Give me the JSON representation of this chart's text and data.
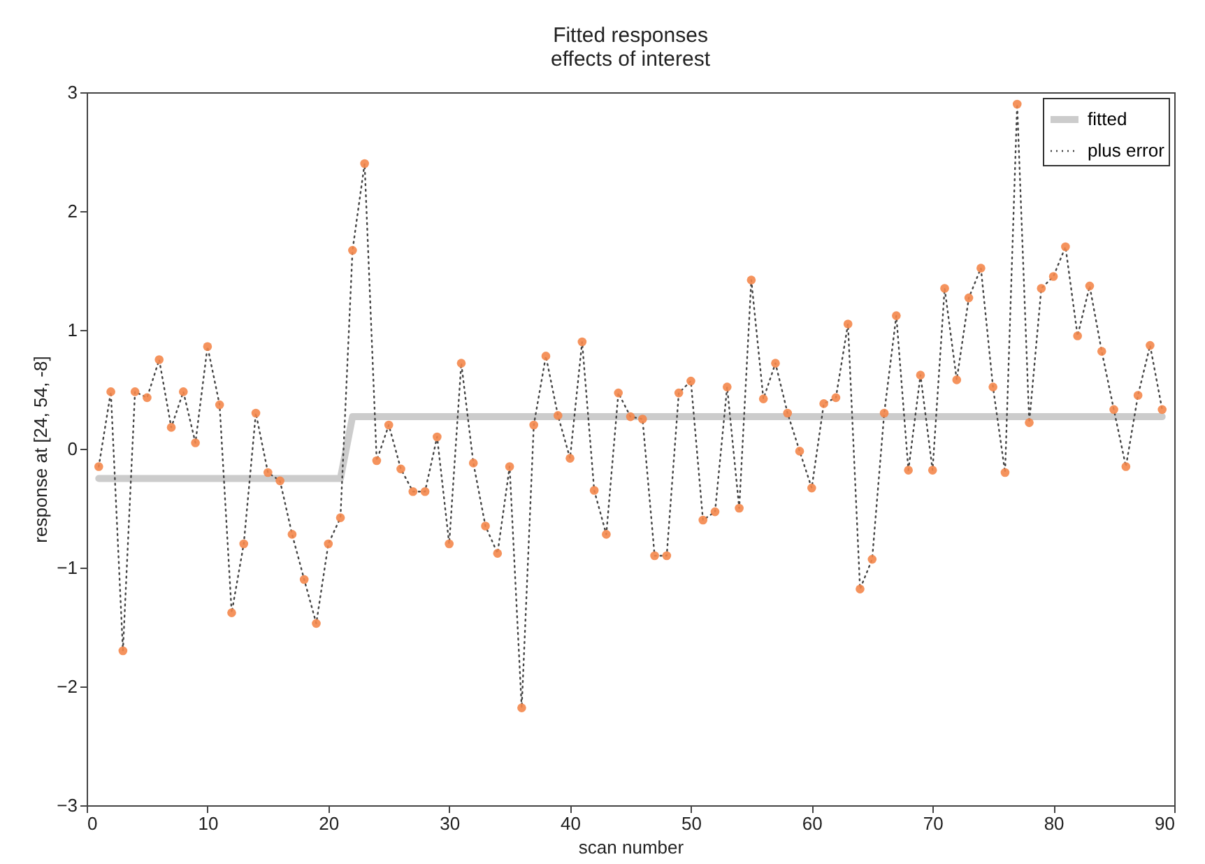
{
  "chart_data": {
    "type": "line",
    "title": "Fitted responses",
    "subtitle": "effects of interest",
    "xlabel": "scan number",
    "ylabel": "response at [24, 54, -8]",
    "x": [
      1,
      2,
      3,
      4,
      5,
      6,
      7,
      8,
      9,
      10,
      11,
      12,
      13,
      14,
      15,
      16,
      17,
      18,
      19,
      20,
      21,
      22,
      23,
      24,
      25,
      26,
      27,
      28,
      29,
      30,
      31,
      32,
      33,
      34,
      35,
      36,
      37,
      38,
      39,
      40,
      41,
      42,
      43,
      44,
      45,
      46,
      47,
      48,
      49,
      50,
      51,
      52,
      53,
      54,
      55,
      56,
      57,
      58,
      59,
      60,
      61,
      62,
      63,
      64,
      65,
      66,
      67,
      68,
      69,
      70,
      71,
      72,
      73,
      74,
      75,
      76,
      77,
      78,
      79,
      80,
      81,
      82,
      83,
      84,
      85,
      86,
      87,
      88,
      89
    ],
    "series": [
      {
        "name": "fitted",
        "color": "#cccccc",
        "line_style": "solid",
        "values": [
          -0.25,
          -0.25,
          -0.25,
          -0.25,
          -0.25,
          -0.25,
          -0.25,
          -0.25,
          -0.25,
          -0.25,
          -0.25,
          -0.25,
          -0.25,
          -0.25,
          -0.25,
          -0.25,
          -0.25,
          -0.25,
          -0.25,
          -0.25,
          -0.25,
          0.27,
          0.27,
          0.27,
          0.27,
          0.27,
          0.27,
          0.27,
          0.27,
          0.27,
          0.27,
          0.27,
          0.27,
          0.27,
          0.27,
          0.27,
          0.27,
          0.27,
          0.27,
          0.27,
          0.27,
          0.27,
          0.27,
          0.27,
          0.27,
          0.27,
          0.27,
          0.27,
          0.27,
          0.27,
          0.27,
          0.27,
          0.27,
          0.27,
          0.27,
          0.27,
          0.27,
          0.27,
          0.27,
          0.27,
          0.27,
          0.27,
          0.27,
          0.27,
          0.27,
          0.27,
          0.27,
          0.27,
          0.27,
          0.27,
          0.27,
          0.27,
          0.27,
          0.27,
          0.27,
          0.27,
          0.27,
          0.27,
          0.27,
          0.27,
          0.27,
          0.27,
          0.27,
          0.27,
          0.27,
          0.27,
          0.27,
          0.27,
          0.27
        ]
      },
      {
        "name": "plus error",
        "color": "#444444",
        "line_style": "dotted",
        "values": [
          -0.15,
          0.48,
          -1.7,
          0.48,
          0.43,
          0.75,
          0.18,
          0.48,
          0.05,
          0.86,
          0.37,
          -1.38,
          -0.8,
          0.3,
          -0.2,
          -0.27,
          -0.72,
          -1.1,
          -1.47,
          -0.8,
          -0.58,
          1.67,
          2.4,
          -0.1,
          0.2,
          -0.17,
          -0.36,
          -0.36,
          0.1,
          -0.8,
          0.72,
          -0.12,
          -0.65,
          -0.88,
          -0.15,
          -2.18,
          0.2,
          0.78,
          0.28,
          -0.08,
          0.9,
          -0.35,
          -0.72,
          0.47,
          0.27,
          0.25,
          -0.9,
          -0.9,
          0.47,
          0.57,
          -0.6,
          -0.53,
          0.52,
          -0.5,
          1.42,
          0.42,
          0.72,
          0.3,
          -0.02,
          -0.33,
          0.38,
          0.43,
          1.05,
          -1.18,
          -0.93,
          0.3,
          1.12,
          -0.18,
          0.62,
          -0.18,
          1.35,
          0.58,
          1.27,
          1.52,
          0.52,
          -0.2,
          2.9,
          0.22,
          1.35,
          1.45,
          1.7,
          0.95,
          1.37,
          0.82,
          0.33,
          -0.15,
          0.45,
          0.87,
          0.33
        ]
      },
      {
        "type": "scatter",
        "color": "#f4874b",
        "marker": "circle",
        "values": [
          -0.15,
          0.48,
          -1.7,
          0.48,
          0.43,
          0.75,
          0.18,
          0.48,
          0.05,
          0.86,
          0.37,
          -1.38,
          -0.8,
          0.3,
          -0.2,
          -0.27,
          -0.72,
          -1.1,
          -1.47,
          -0.8,
          -0.58,
          1.67,
          2.4,
          -0.1,
          0.2,
          -0.17,
          -0.36,
          -0.36,
          0.1,
          -0.8,
          0.72,
          -0.12,
          -0.65,
          -0.88,
          -0.15,
          -2.18,
          0.2,
          0.78,
          0.28,
          -0.08,
          0.9,
          -0.35,
          -0.72,
          0.47,
          0.27,
          0.25,
          -0.9,
          -0.9,
          0.47,
          0.57,
          -0.6,
          -0.53,
          0.52,
          -0.5,
          1.42,
          0.42,
          0.72,
          0.3,
          -0.02,
          -0.33,
          0.38,
          0.43,
          1.05,
          -1.18,
          -0.93,
          0.3,
          1.12,
          -0.18,
          0.62,
          -0.18,
          1.35,
          0.58,
          1.27,
          1.52,
          0.52,
          -0.2,
          2.9,
          0.22,
          1.35,
          1.45,
          1.7,
          0.95,
          1.37,
          0.82,
          0.33,
          -0.15,
          0.45,
          0.87,
          0.33
        ]
      }
    ],
    "xlim": [
      0,
      90
    ],
    "xticks": [
      0,
      10,
      20,
      30,
      40,
      50,
      60,
      70,
      80,
      90
    ],
    "ylim": [
      -3,
      3
    ],
    "yticks": [
      -3,
      -2,
      -1,
      0,
      1,
      2,
      3
    ],
    "grid": false,
    "legend": "top right"
  }
}
